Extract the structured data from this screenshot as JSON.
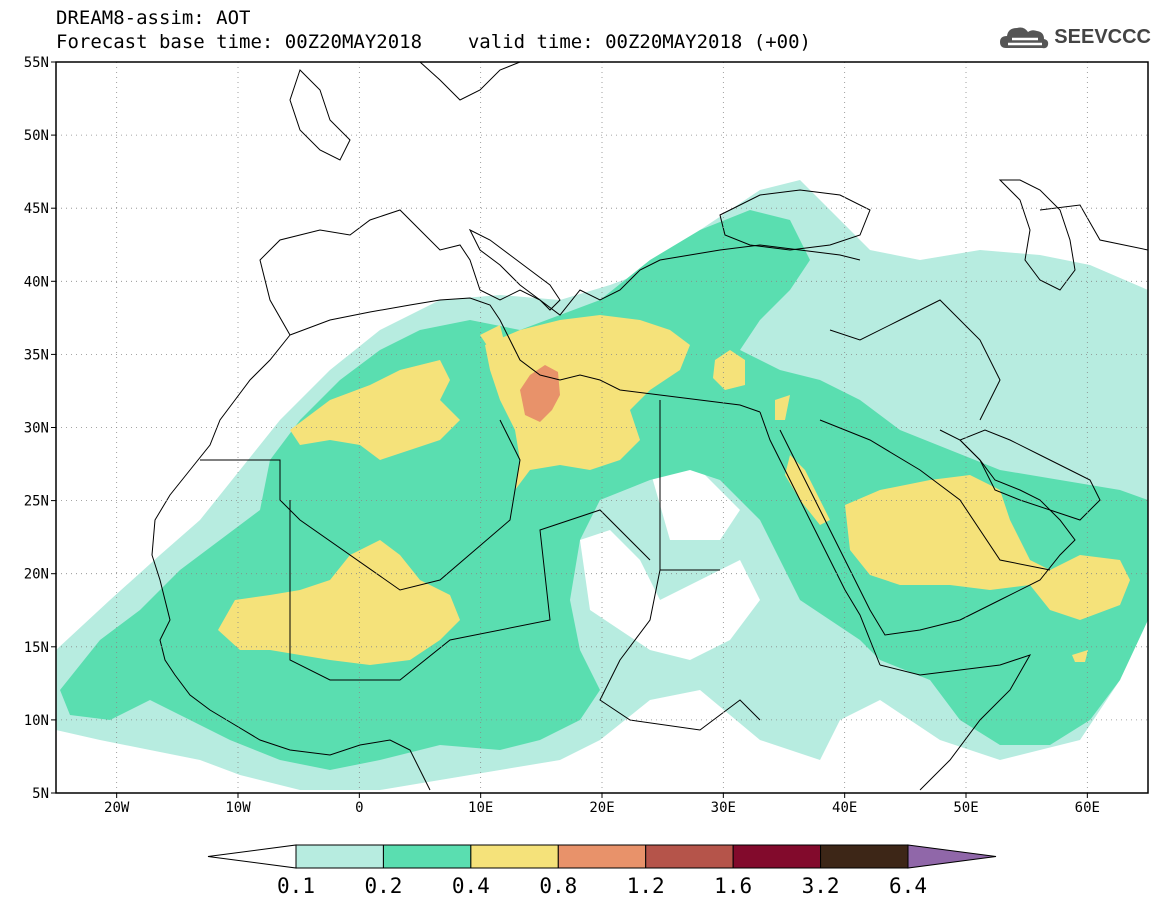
{
  "header": {
    "title": "DREAM8-assim: AOT",
    "base_time_label": "Forecast base time: 00Z20MAY2018",
    "valid_time_label": "valid time: 00Z20MAY2018 (+00)"
  },
  "logo": {
    "text": "SEEVCCC",
    "icon": "cloud-icon"
  },
  "map": {
    "lat_labels": [
      "55N",
      "50N",
      "45N",
      "40N",
      "35N",
      "30N",
      "25N",
      "20N",
      "15N",
      "10N",
      "5N"
    ],
    "lon_labels": [
      "20W",
      "10W",
      "0",
      "10E",
      "20E",
      "30E",
      "40E",
      "50E",
      "60E"
    ]
  },
  "colorbar": {
    "colors": [
      "#ffffff",
      "#b7ece0",
      "#5ade b0",
      "#f5e27a",
      "#e8926a",
      "#b5544a",
      "#820a2c",
      "#3d2617",
      "#9067a9"
    ],
    "labels": [
      "0.1",
      "0.2",
      "0.4",
      "0.8",
      "1.2",
      "1.6",
      "3.2",
      "6.4"
    ]
  }
}
